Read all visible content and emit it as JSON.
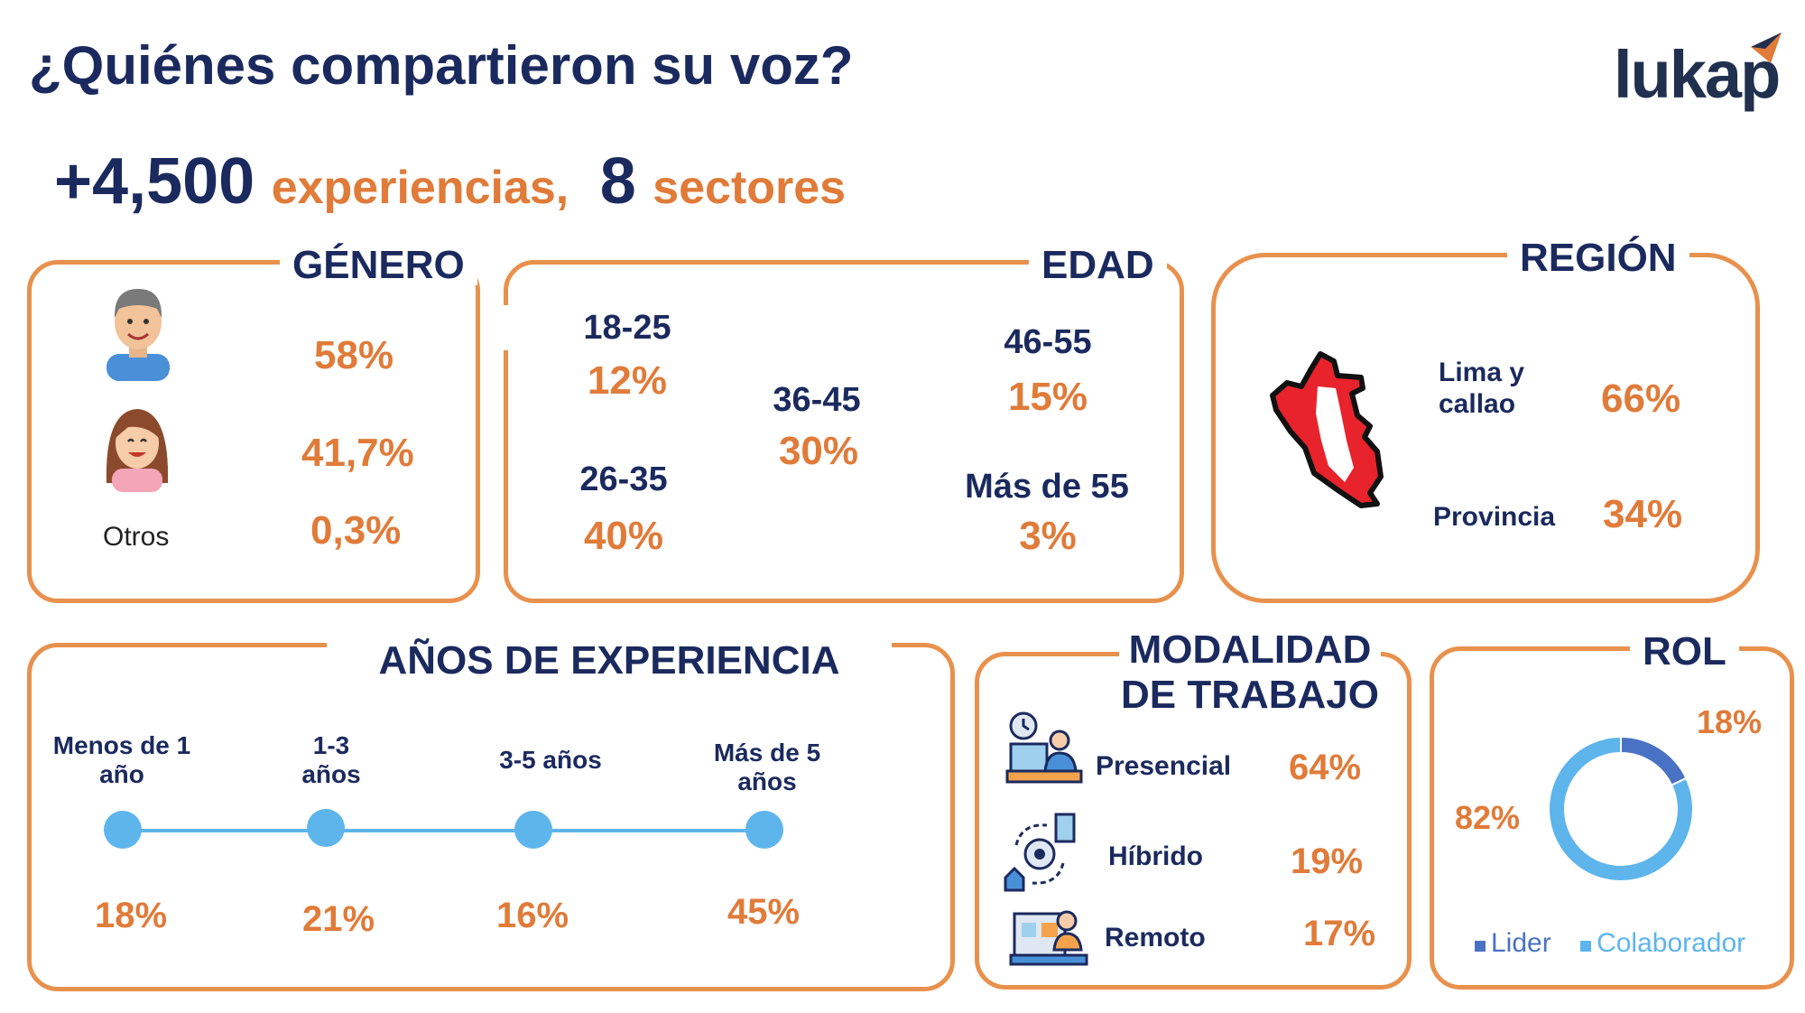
{
  "title": "¿Quiénes compartieron su voz?",
  "logo": "lukap",
  "headline": {
    "count": "+4,500",
    "count_label": "experiencias,",
    "sectors": "8",
    "sectors_label": "sectores"
  },
  "genero": {
    "title": "GÉNERO",
    "items": [
      {
        "icon": "man-icon",
        "label": "",
        "value": "58%"
      },
      {
        "icon": "woman-icon",
        "label": "",
        "value": "41,7%"
      },
      {
        "icon": "",
        "label": "Otros",
        "value": "0,3%"
      }
    ]
  },
  "edad": {
    "title": "EDAD",
    "groups": [
      {
        "label": "18-25",
        "value": "12%"
      },
      {
        "label": "26-35",
        "value": "40%"
      },
      {
        "label": "36-45",
        "value": "30%"
      },
      {
        "label": "46-55",
        "value": "15%"
      },
      {
        "label": "Más de 55",
        "value": "3%"
      }
    ]
  },
  "region": {
    "title": "REGIÓN",
    "icon": "peru-map-icon",
    "items": [
      {
        "label": "Lima y callao",
        "value": "66%"
      },
      {
        "label": "Provincia",
        "value": "34%"
      }
    ]
  },
  "experiencia": {
    "title": "AÑOS DE EXPERIENCIA",
    "steps": [
      {
        "label": "Menos de 1 año",
        "value": "18%"
      },
      {
        "label": "1-3 años",
        "value": "21%"
      },
      {
        "label": "3-5 años",
        "value": "16%"
      },
      {
        "label": "Más de 5 años",
        "value": "45%"
      }
    ],
    "line_color": "#5db5ec"
  },
  "modalidad": {
    "title_line1": "MODALIDAD",
    "title_line2": "DE TRABAJO",
    "items": [
      {
        "icon": "office-worker-icon",
        "label": "Presencial",
        "value": "64%"
      },
      {
        "icon": "hybrid-cycle-icon",
        "label": "Híbrido",
        "value": "19%"
      },
      {
        "icon": "remote-work-icon",
        "label": "Remoto",
        "value": "17%"
      }
    ]
  },
  "chart_data": {
    "type": "pie",
    "title": "ROL",
    "categories": [
      "Lider",
      "Colaborador"
    ],
    "values": [
      18,
      82
    ],
    "value_labels": [
      "18%",
      "82%"
    ],
    "colors": [
      "#4a72c4",
      "#5db5ec"
    ],
    "legend": "bottom"
  },
  "colors": {
    "navy": "#1b2a5e",
    "orange": "#e07b39",
    "border": "#e8914d",
    "blue": "#5db5ec",
    "dark_blue": "#4a72c4"
  }
}
